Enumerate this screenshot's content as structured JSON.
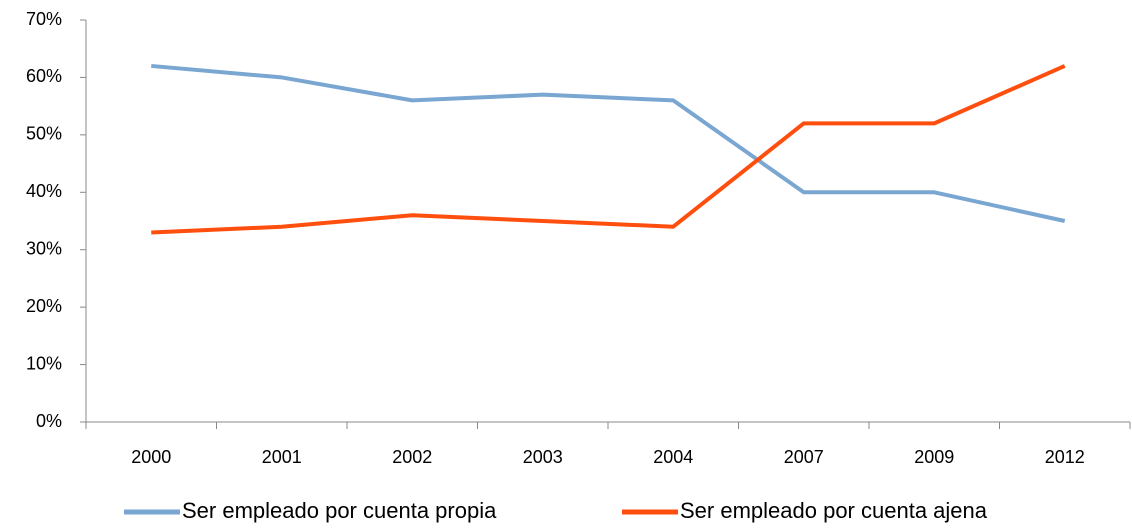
{
  "chart_data": {
    "type": "line",
    "categories": [
      "2000",
      "2001",
      "2002",
      "2003",
      "2004",
      "2007",
      "2009",
      "2012"
    ],
    "series": [
      {
        "name": "Ser empleado por cuenta propia",
        "color": "#7aa6d2",
        "values": [
          62,
          60,
          56,
          57,
          56,
          40,
          40,
          35
        ]
      },
      {
        "name": "Ser empleado por cuenta ajena",
        "color": "#ff4f0f",
        "values": [
          33,
          34,
          36,
          35,
          34,
          52,
          52,
          62
        ]
      }
    ],
    "ylim": [
      0,
      70
    ],
    "yticks": [
      {
        "value": 0,
        "label": "0%"
      },
      {
        "value": 10,
        "label": "10%"
      },
      {
        "value": 20,
        "label": "20%"
      },
      {
        "value": 30,
        "label": "30%"
      },
      {
        "value": 40,
        "label": "40%"
      },
      {
        "value": 50,
        "label": "50%"
      },
      {
        "value": 60,
        "label": "60%"
      },
      {
        "value": 70,
        "label": "70%"
      }
    ],
    "grid": false,
    "legend": "bottom"
  }
}
